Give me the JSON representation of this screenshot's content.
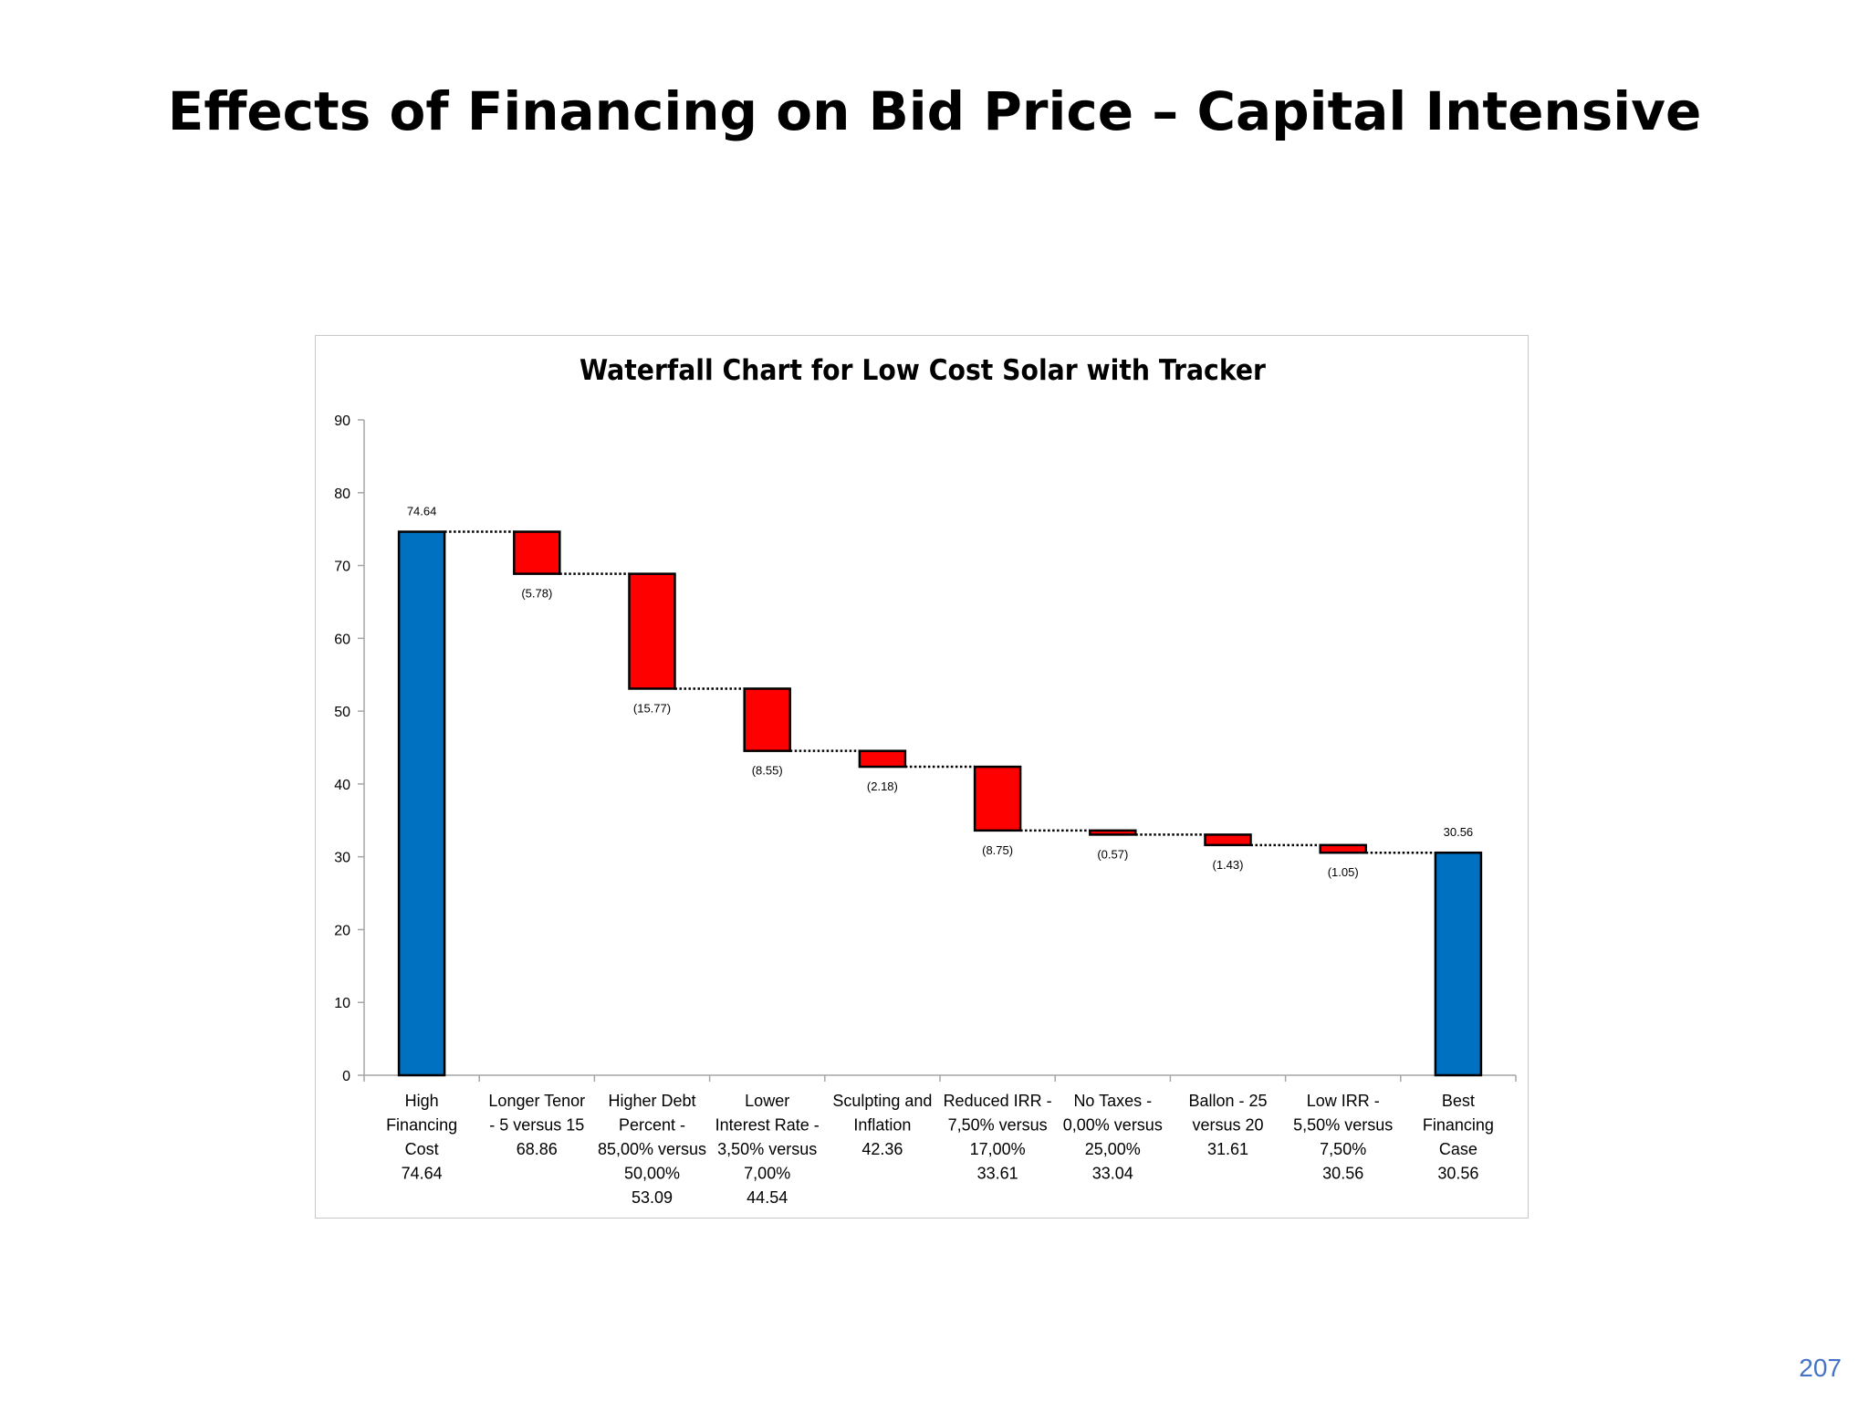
{
  "slide": {
    "title": "Effects of Financing on Bid Price – Capital Intensive",
    "page_number": "207"
  },
  "colors": {
    "total_bar": "#0070c0",
    "decrease_bar": "#ff0000",
    "bar_outline": "#000000",
    "axis": "#a6a6a6",
    "connector": "#000000"
  },
  "chart_data": {
    "type": "bar",
    "subtype": "waterfall",
    "title": "Waterfall Chart for Low Cost Solar with Tracker",
    "xlabel": "",
    "ylabel": "",
    "ylim": [
      0,
      90
    ],
    "yticks": [
      0,
      10,
      20,
      30,
      40,
      50,
      60,
      70,
      80,
      90
    ],
    "grid": false,
    "legend": "none",
    "categories": [
      [
        "High",
        "Financing",
        "Cost",
        "74.64"
      ],
      [
        "Longer Tenor",
        "- 5 versus 15",
        "68.86"
      ],
      [
        "Higher Debt",
        "Percent -",
        "85,00% versus",
        "50,00%",
        "53.09"
      ],
      [
        "Lower",
        "Interest Rate -",
        "3,50% versus",
        "7,00%",
        "44.54"
      ],
      [
        "Sculpting and",
        "Inflation",
        "42.36"
      ],
      [
        "Reduced IRR -",
        "7,50% versus",
        "17,00%",
        "33.61"
      ],
      [
        "No Taxes -",
        "0,00% versus",
        "25,00%",
        "33.04"
      ],
      [
        "Ballon - 25",
        "versus 20",
        "31.61"
      ],
      [
        "Low IRR -",
        "5,50% versus",
        "7,50%",
        "30.56"
      ],
      [
        "Best",
        "Financing",
        "Case",
        "30.56"
      ]
    ],
    "bars": [
      {
        "kind": "total",
        "start": 0,
        "end": 74.64,
        "label": "74.64"
      },
      {
        "kind": "decrease",
        "start": 74.64,
        "end": 68.86,
        "label": "(5.78)"
      },
      {
        "kind": "decrease",
        "start": 68.86,
        "end": 53.09,
        "label": "(15.77)"
      },
      {
        "kind": "decrease",
        "start": 53.09,
        "end": 44.54,
        "label": "(8.55)"
      },
      {
        "kind": "decrease",
        "start": 44.54,
        "end": 42.36,
        "label": "(2.18)"
      },
      {
        "kind": "decrease",
        "start": 42.36,
        "end": 33.61,
        "label": "(8.75)"
      },
      {
        "kind": "decrease",
        "start": 33.61,
        "end": 33.04,
        "label": "(0.57)"
      },
      {
        "kind": "decrease",
        "start": 33.04,
        "end": 31.61,
        "label": "(1.43)"
      },
      {
        "kind": "decrease",
        "start": 31.61,
        "end": 30.56,
        "label": "(1.05)"
      },
      {
        "kind": "total",
        "start": 0,
        "end": 30.56,
        "label": "30.56"
      }
    ]
  }
}
